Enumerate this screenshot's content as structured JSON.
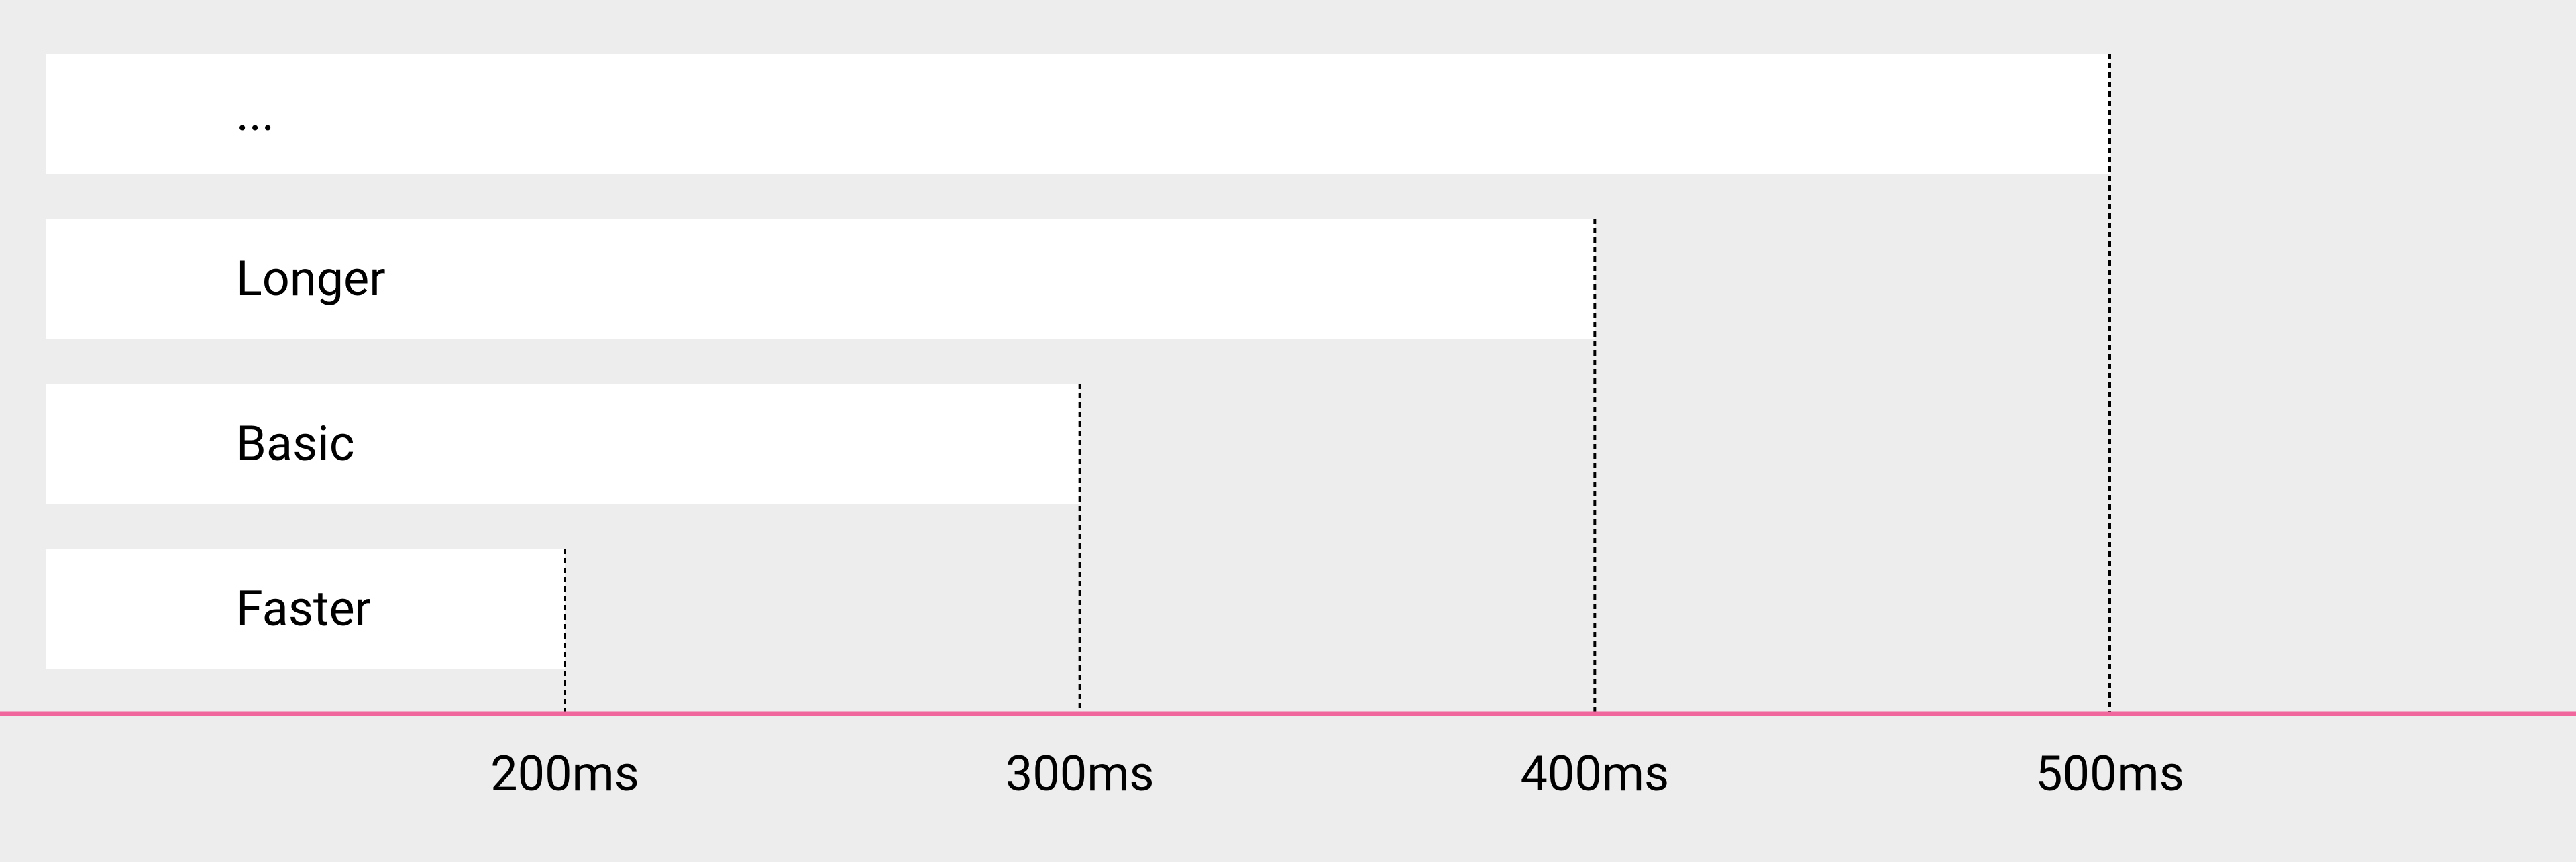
{
  "chart_data": {
    "type": "bar",
    "orientation": "horizontal",
    "categories": [
      "...",
      "Longer",
      "Basic",
      "Faster"
    ],
    "values": [
      500,
      400,
      300,
      200
    ],
    "unit": "ms",
    "xticks": [
      200,
      300,
      400,
      500
    ],
    "xtick_labels": [
      "200ms",
      "300ms",
      "400ms",
      "500ms"
    ],
    "title": "",
    "xlabel": "",
    "ylabel": "",
    "grid": false,
    "legend": "none"
  },
  "colors": {
    "background": "#ededed",
    "bar": "#ffffff",
    "axis": "#f0679d",
    "text": "#000000",
    "marker": "#000000"
  }
}
